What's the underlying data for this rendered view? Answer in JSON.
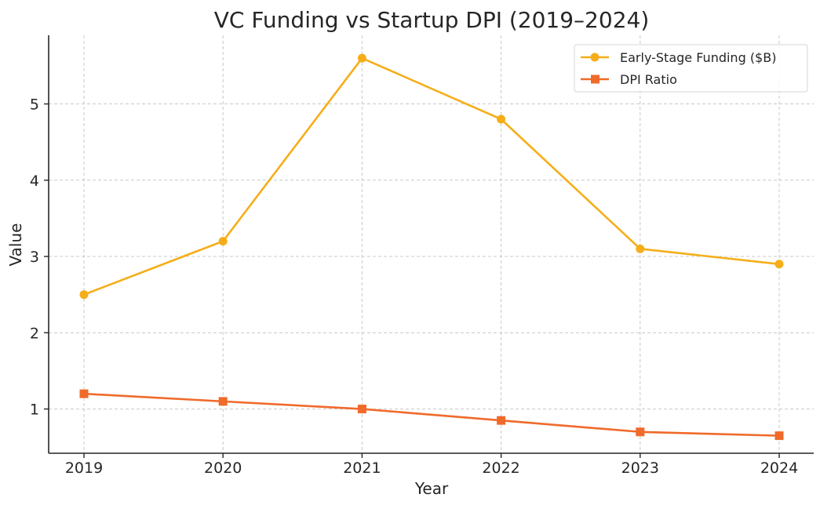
{
  "chart_data": {
    "type": "line",
    "title": "VC Funding vs Startup DPI (2019–2024)",
    "xlabel": "Year",
    "ylabel": "Value",
    "categories": [
      "2019",
      "2020",
      "2021",
      "2022",
      "2023",
      "2024"
    ],
    "ylim": [
      0.42,
      5.9
    ],
    "yticks": [
      1,
      2,
      3,
      4,
      5
    ],
    "grid": true,
    "legend_position": "top-right",
    "series": [
      {
        "name": "Early-Stage Funding ($B)",
        "values": [
          2.5,
          3.2,
          5.6,
          4.8,
          3.1,
          2.9
        ],
        "color": "#f5ae19",
        "marker": "circle"
      },
      {
        "name": "DPI Ratio",
        "values": [
          1.2,
          1.1,
          1.0,
          0.85,
          0.7,
          0.65
        ],
        "color": "#f06a2a",
        "marker": "square"
      }
    ]
  }
}
